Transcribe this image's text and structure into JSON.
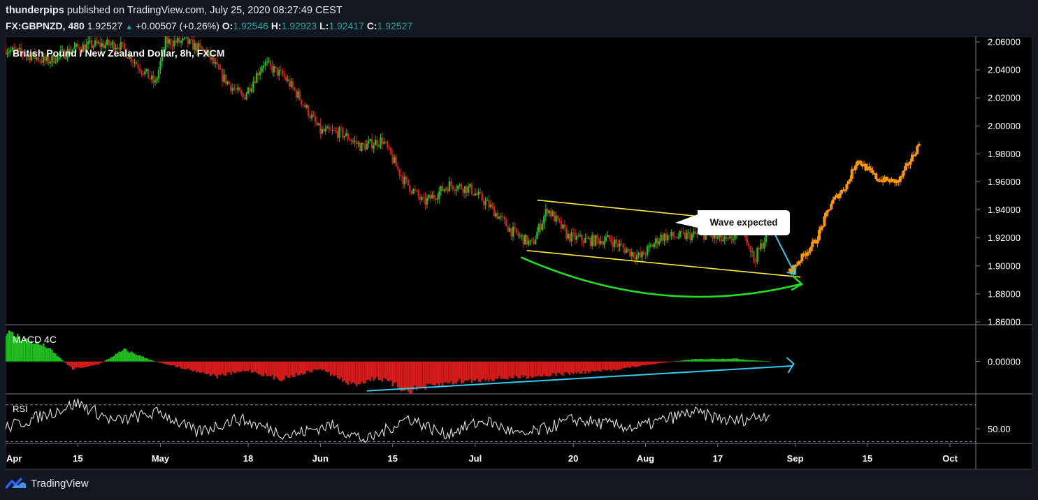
{
  "header": {
    "user": "thunderpips",
    "published": "published on TradingView.com, July 25, 2020 08:27:49 CEST",
    "symbol": "FX:GBPNZD, 480",
    "last": "1.92527",
    "change": "+0.00507 (+0.26%)",
    "o_label": "O:",
    "o": "1.92546",
    "h_label": "H:",
    "h": "1.92923",
    "l_label": "L:",
    "l": "1.92417",
    "c_label": "C:",
    "c": "1.92527"
  },
  "footer": {
    "brand": "TradingView"
  },
  "colors": {
    "background": "#000000",
    "up": "#21c021",
    "down": "#d81c1c",
    "projection": "#ff9800",
    "channel": "#ffeb3b",
    "curve": "#22dd22",
    "arrow": "#33ccee"
  },
  "chart_data": [
    {
      "type": "candlestick",
      "title": "British Pound / New Zealand Dollar, 8h, FXCM",
      "yticks": [
        "2.06000",
        "2.04000",
        "2.02000",
        "2.00000",
        "1.98000",
        "1.96000",
        "1.94000",
        "1.92000",
        "1.90000",
        "1.88000",
        "1.86000"
      ],
      "ylim": [
        1.858,
        2.064
      ],
      "xticks": [
        "Apr",
        "15",
        "May",
        "18",
        "Jun",
        "15",
        "Jul",
        "20",
        "Aug",
        "17",
        "Sep",
        "15",
        "Oct"
      ],
      "x_range": [
        "2020-04-01",
        "2020-10-06"
      ],
      "close_path": [
        [
          "2020-04-01",
          2.055
        ],
        [
          "2020-04-06",
          2.05
        ],
        [
          "2020-04-09",
          2.046
        ],
        [
          "2020-04-14",
          2.055
        ],
        [
          "2020-04-18",
          2.058
        ],
        [
          "2020-04-23",
          2.058
        ],
        [
          "2020-04-28",
          2.038
        ],
        [
          "2020-04-30",
          2.03
        ],
        [
          "2020-05-02",
          2.06
        ],
        [
          "2020-05-06",
          2.06
        ],
        [
          "2020-05-10",
          2.052
        ],
        [
          "2020-05-13",
          2.035
        ],
        [
          "2020-05-17",
          2.02
        ],
        [
          "2020-05-21",
          2.045
        ],
        [
          "2020-05-25",
          2.035
        ],
        [
          "2020-05-28",
          2.02
        ],
        [
          "2020-06-01",
          1.996
        ],
        [
          "2020-06-05",
          1.995
        ],
        [
          "2020-06-09",
          1.985
        ],
        [
          "2020-06-13",
          1.99
        ],
        [
          "2020-06-17",
          1.962
        ],
        [
          "2020-06-21",
          1.945
        ],
        [
          "2020-06-26",
          1.958
        ],
        [
          "2020-06-30",
          1.955
        ],
        [
          "2020-07-04",
          1.942
        ],
        [
          "2020-07-08",
          1.925
        ],
        [
          "2020-07-12",
          1.915
        ],
        [
          "2020-07-15",
          1.941
        ],
        [
          "2020-07-19",
          1.921
        ],
        [
          "2020-07-23",
          1.918
        ],
        [
          "2020-07-27",
          1.919
        ],
        [
          "2020-07-30",
          1.912
        ],
        [
          "2020-08-02",
          1.906
        ],
        [
          "2020-08-06",
          1.921
        ],
        [
          "2020-08-10",
          1.921
        ],
        [
          "2020-08-14",
          1.923
        ],
        [
          "2020-08-19",
          1.917
        ],
        [
          "2020-08-22",
          1.928
        ],
        [
          "2020-08-24",
          1.904
        ],
        [
          "2020-08-27",
          1.926
        ]
      ],
      "projection_path": [
        [
          "2020-08-31",
          1.896
        ],
        [
          "2020-09-02",
          1.905
        ],
        [
          "2020-09-05",
          1.918
        ],
        [
          "2020-09-08",
          1.945
        ],
        [
          "2020-09-11",
          1.958
        ],
        [
          "2020-09-13",
          1.976
        ],
        [
          "2020-09-17",
          1.962
        ],
        [
          "2020-09-21",
          1.96
        ],
        [
          "2020-09-24",
          1.98
        ],
        [
          "2020-09-25",
          1.987
        ]
      ],
      "annotations": {
        "channel_upper": [
          [
            "2020-07-13",
            1.947
          ],
          [
            "2020-08-28",
            1.93
          ]
        ],
        "channel_lower": [
          [
            "2020-07-11",
            1.911
          ],
          [
            "2020-09-02",
            1.892
          ]
        ],
        "callout": "Wave expected"
      }
    },
    {
      "type": "bar",
      "title": "MACD 4C",
      "ytick": "0.00000",
      "ylim": [
        -0.022,
        0.025
      ],
      "anchor_path": [
        [
          "2020-04-01",
          0.02
        ],
        [
          "2020-04-09",
          0.01
        ],
        [
          "2020-04-14",
          -0.005
        ],
        [
          "2020-04-19",
          -0.002
        ],
        [
          "2020-04-24",
          0.008
        ],
        [
          "2020-04-30",
          0.0
        ],
        [
          "2020-05-06",
          -0.005
        ],
        [
          "2020-05-12",
          -0.01
        ],
        [
          "2020-05-18",
          -0.006
        ],
        [
          "2020-05-24",
          -0.012
        ],
        [
          "2020-06-01",
          -0.005
        ],
        [
          "2020-06-07",
          -0.016
        ],
        [
          "2020-06-12",
          -0.011
        ],
        [
          "2020-06-18",
          -0.02
        ],
        [
          "2020-06-27",
          -0.014
        ],
        [
          "2020-07-04",
          -0.012
        ],
        [
          "2020-07-12",
          -0.01
        ],
        [
          "2020-07-20",
          -0.008
        ],
        [
          "2020-07-27",
          -0.006
        ],
        [
          "2020-08-04",
          -0.002
        ],
        [
          "2020-08-12",
          0.0015
        ],
        [
          "2020-08-20",
          0.002
        ],
        [
          "2020-08-27",
          0.0
        ]
      ],
      "arrow": [
        [
          "2020-06-10",
          -0.02
        ],
        [
          "2020-08-29",
          -0.003
        ]
      ]
    },
    {
      "type": "line",
      "title": "RSI",
      "ytick": "50.00",
      "ylim": [
        28,
        82
      ],
      "bands": [
        30,
        70
      ],
      "anchor_path": [
        [
          "2020-04-01",
          45
        ],
        [
          "2020-04-08",
          58
        ],
        [
          "2020-04-15",
          72
        ],
        [
          "2020-04-22",
          52
        ],
        [
          "2020-05-01",
          62
        ],
        [
          "2020-05-08",
          40
        ],
        [
          "2020-05-16",
          55
        ],
        [
          "2020-05-26",
          37
        ],
        [
          "2020-06-03",
          48
        ],
        [
          "2020-06-10",
          31
        ],
        [
          "2020-06-18",
          56
        ],
        [
          "2020-06-25",
          38
        ],
        [
          "2020-07-03",
          53
        ],
        [
          "2020-07-10",
          36
        ],
        [
          "2020-07-20",
          54
        ],
        [
          "2020-08-01",
          45
        ],
        [
          "2020-08-12",
          62
        ],
        [
          "2020-08-20",
          52
        ],
        [
          "2020-08-27",
          60
        ]
      ]
    }
  ]
}
